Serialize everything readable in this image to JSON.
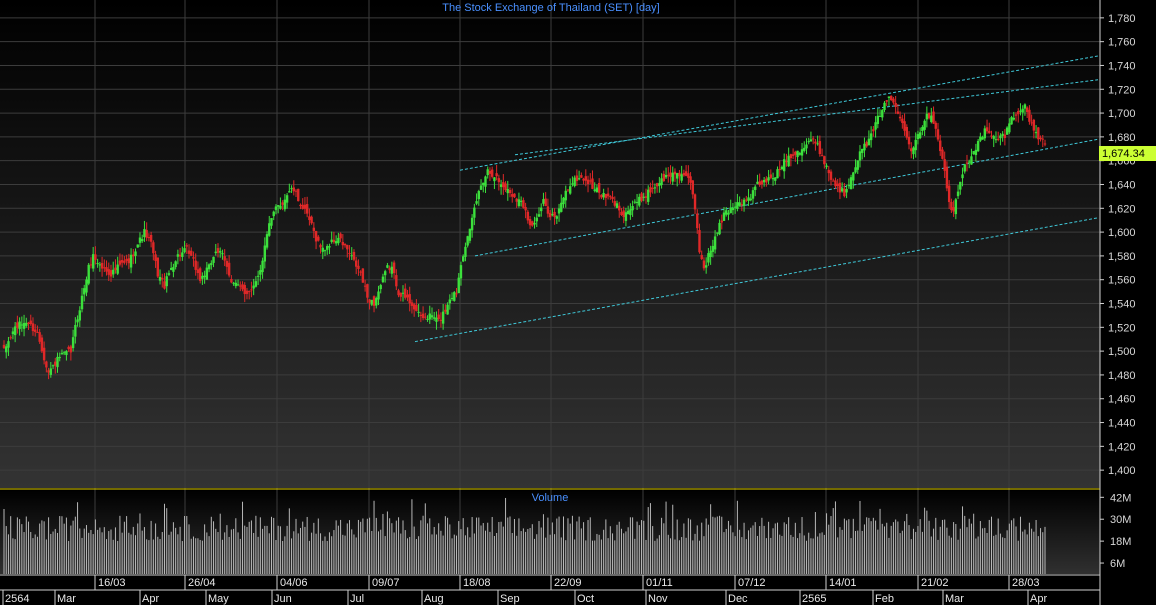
{
  "chart_data": {
    "type": "candlestick",
    "title": "The Stock Exchange of Thailand (SET) [day]",
    "volume_title": "Volume",
    "last_price": "1,674.34",
    "ylim": [
      1385,
      1795
    ],
    "y_ticks": [
      1400,
      1420,
      1440,
      1460,
      1480,
      1500,
      1520,
      1540,
      1560,
      1580,
      1600,
      1620,
      1640,
      1660,
      1680,
      1700,
      1720,
      1740,
      1760,
      1780
    ],
    "y_tick_labels": [
      "1,400",
      "1,420",
      "1,440",
      "1,460",
      "1,480",
      "1,500",
      "1,520",
      "1,540",
      "1,560",
      "1,580",
      "1,600",
      "1,620",
      "1,640",
      "1,660",
      "1,680",
      "1,700",
      "1,720",
      "1,740",
      "1,760",
      "1,780"
    ],
    "volume_ticks": [
      "6M",
      "18M",
      "30M",
      "42M"
    ],
    "date_labels": [
      "16/03",
      "26/04",
      "04/06",
      "09/07",
      "18/08",
      "22/09",
      "01/11",
      "07/12",
      "14/01",
      "21/02",
      "28/03"
    ],
    "month_labels": [
      "2564",
      "Mar",
      "Apr",
      "May",
      "Jun",
      "Jul",
      "Aug",
      "Sep",
      "Oct",
      "Nov",
      "Dec",
      "2565",
      "Feb",
      "Mar",
      "Apr"
    ],
    "price_path": [
      [
        0,
        1500
      ],
      [
        5,
        1520
      ],
      [
        10,
        1525
      ],
      [
        15,
        1515
      ],
      [
        18,
        1495
      ],
      [
        20,
        1482
      ],
      [
        25,
        1495
      ],
      [
        30,
        1500
      ],
      [
        32,
        1520
      ],
      [
        35,
        1545
      ],
      [
        38,
        1570
      ],
      [
        40,
        1580
      ],
      [
        44,
        1570
      ],
      [
        48,
        1565
      ],
      [
        52,
        1572
      ],
      [
        56,
        1575
      ],
      [
        60,
        1590
      ],
      [
        63,
        1600
      ],
      [
        66,
        1590
      ],
      [
        69,
        1565
      ],
      [
        72,
        1555
      ],
      [
        75,
        1570
      ],
      [
        78,
        1580
      ],
      [
        82,
        1585
      ],
      [
        85,
        1575
      ],
      [
        88,
        1560
      ],
      [
        92,
        1570
      ],
      [
        95,
        1585
      ],
      [
        98,
        1580
      ],
      [
        102,
        1560
      ],
      [
        105,
        1555
      ],
      [
        108,
        1548
      ],
      [
        112,
        1555
      ],
      [
        116,
        1575
      ],
      [
        118,
        1600
      ],
      [
        122,
        1620
      ],
      [
        125,
        1625
      ],
      [
        128,
        1635
      ],
      [
        130,
        1635
      ],
      [
        134,
        1620
      ],
      [
        137,
        1610
      ],
      [
        140,
        1595
      ],
      [
        143,
        1585
      ],
      [
        146,
        1590
      ],
      [
        150,
        1595
      ],
      [
        154,
        1585
      ],
      [
        157,
        1575
      ],
      [
        160,
        1565
      ],
      [
        163,
        1545
      ],
      [
        166,
        1540
      ],
      [
        169,
        1555
      ],
      [
        172,
        1570
      ],
      [
        174,
        1570
      ],
      [
        177,
        1550
      ],
      [
        180,
        1545
      ],
      [
        183,
        1540
      ],
      [
        186,
        1530
      ],
      [
        189,
        1528
      ],
      [
        192,
        1530
      ],
      [
        195,
        1525
      ],
      [
        198,
        1535
      ],
      [
        200,
        1545
      ],
      [
        203,
        1550
      ],
      [
        205,
        1575
      ],
      [
        207,
        1590
      ],
      [
        209,
        1600
      ],
      [
        211,
        1620
      ],
      [
        214,
        1640
      ],
      [
        217,
        1652
      ],
      [
        220,
        1648
      ],
      [
        223,
        1640
      ],
      [
        226,
        1635
      ],
      [
        229,
        1630
      ],
      [
        232,
        1625
      ],
      [
        234,
        1620
      ],
      [
        236,
        1605
      ],
      [
        239,
        1610
      ],
      [
        242,
        1625
      ],
      [
        245,
        1615
      ],
      [
        248,
        1612
      ],
      [
        251,
        1630
      ],
      [
        254,
        1640
      ],
      [
        257,
        1645
      ],
      [
        260,
        1645
      ],
      [
        263,
        1640
      ],
      [
        266,
        1635
      ],
      [
        269,
        1630
      ],
      [
        272,
        1628
      ],
      [
        275,
        1622
      ],
      [
        278,
        1615
      ],
      [
        281,
        1620
      ],
      [
        284,
        1625
      ],
      [
        287,
        1630
      ],
      [
        290,
        1635
      ],
      [
        293,
        1640
      ],
      [
        296,
        1645
      ],
      [
        299,
        1648
      ],
      [
        302,
        1650
      ],
      [
        305,
        1648
      ],
      [
        308,
        1640
      ],
      [
        310,
        1620
      ],
      [
        312,
        1585
      ],
      [
        314,
        1570
      ],
      [
        317,
        1585
      ],
      [
        320,
        1600
      ],
      [
        323,
        1615
      ],
      [
        326,
        1620
      ],
      [
        329,
        1625
      ],
      [
        332,
        1625
      ],
      [
        335,
        1630
      ],
      [
        338,
        1640
      ],
      [
        341,
        1642
      ],
      [
        344,
        1645
      ],
      [
        347,
        1650
      ],
      [
        350,
        1660
      ],
      [
        353,
        1665
      ],
      [
        356,
        1668
      ],
      [
        359,
        1672
      ],
      [
        362,
        1678
      ],
      [
        365,
        1672
      ],
      [
        368,
        1660
      ],
      [
        371,
        1645
      ],
      [
        374,
        1638
      ],
      [
        377,
        1632
      ],
      [
        380,
        1648
      ],
      [
        383,
        1662
      ],
      [
        386,
        1672
      ],
      [
        389,
        1680
      ],
      [
        392,
        1695
      ],
      [
        395,
        1710
      ],
      [
        398,
        1712
      ],
      [
        401,
        1700
      ],
      [
        404,
        1688
      ],
      [
        407,
        1670
      ],
      [
        410,
        1682
      ],
      [
        413,
        1695
      ],
      [
        416,
        1700
      ],
      [
        419,
        1680
      ],
      [
        422,
        1650
      ],
      [
        424,
        1625
      ],
      [
        426,
        1615
      ],
      [
        428,
        1635
      ],
      [
        431,
        1655
      ],
      [
        434,
        1665
      ],
      [
        437,
        1675
      ],
      [
        440,
        1685
      ],
      [
        443,
        1680
      ],
      [
        446,
        1678
      ],
      [
        449,
        1682
      ],
      [
        452,
        1695
      ],
      [
        455,
        1702
      ],
      [
        458,
        1705
      ],
      [
        461,
        1690
      ],
      [
        464,
        1680
      ],
      [
        467,
        1674
      ]
    ]
  }
}
